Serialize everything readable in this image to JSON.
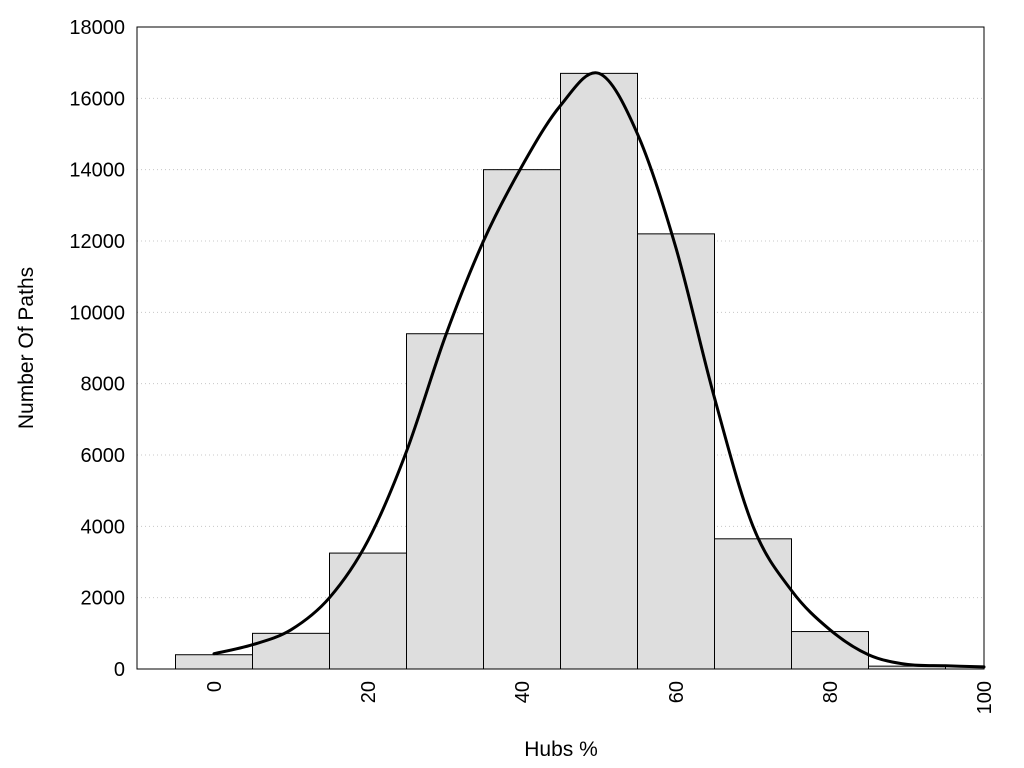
{
  "chart_data": {
    "type": "bar",
    "title": "",
    "xlabel": "Hubs %",
    "ylabel": "Number Of Paths",
    "xlim": [
      -10,
      100
    ],
    "ylim": [
      0,
      18000
    ],
    "x_ticks": [
      0,
      20,
      40,
      60,
      80,
      100
    ],
    "y_ticks": [
      0,
      2000,
      4000,
      6000,
      8000,
      10000,
      12000,
      14000,
      16000,
      18000
    ],
    "grid": "horizontal dotted",
    "bar_width": 10,
    "bars": {
      "centers": [
        0,
        10,
        20,
        30,
        40,
        50,
        60,
        70,
        80,
        90
      ],
      "values": [
        400,
        1000,
        3250,
        9400,
        14000,
        16700,
        12200,
        3650,
        1050,
        80
      ]
    },
    "density_curve": {
      "x": [
        0,
        5,
        10,
        15,
        20,
        25,
        30,
        35,
        40,
        45,
        50,
        55,
        60,
        65,
        70,
        75,
        80,
        85,
        90,
        95,
        100
      ],
      "y": [
        430,
        680,
        1100,
        2000,
        3600,
        6100,
        9300,
        12000,
        14100,
        15800,
        16700,
        15000,
        11800,
        7600,
        4000,
        2200,
        1100,
        400,
        130,
        90,
        60
      ]
    },
    "colors": {
      "bar_fill": "#dedede",
      "bar_edge": "#000000",
      "line": "#000000",
      "grid": "#c8c8c8"
    }
  }
}
